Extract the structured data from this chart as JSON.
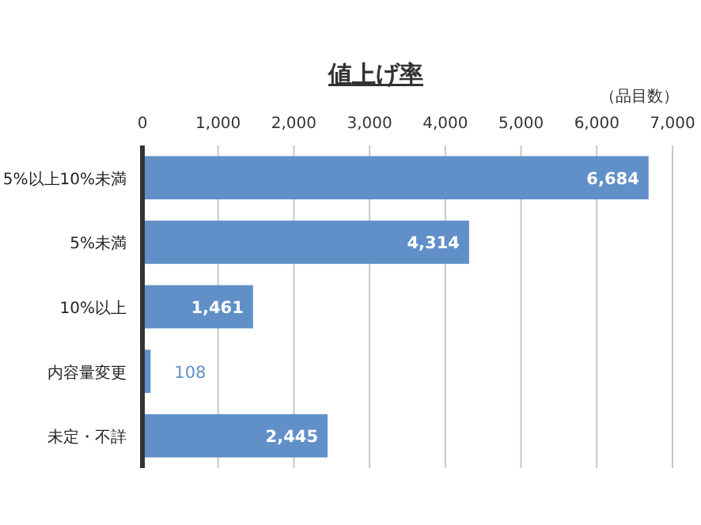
{
  "chart_data": {
    "type": "bar",
    "orientation": "horizontal",
    "title": "値上げ率",
    "xlabel": "（品目数）",
    "categories": [
      "5%以上10%未満",
      "5%未満",
      "10%以上",
      "内容量変更",
      "未定・不詳"
    ],
    "values": [
      6684,
      4314,
      1461,
      108,
      2445
    ],
    "value_labels": [
      "6,684",
      "4,314",
      "1,461",
      "108",
      "2,445"
    ],
    "color": "#6190c8",
    "xlim": [
      0,
      7000
    ],
    "xticks": [
      0,
      {
        "value": 1000,
        "label": "1,000"
      },
      {
        "value": 2000,
        "label": "2,000"
      },
      {
        "value": 3000,
        "label": "3,000"
      },
      {
        "value": 4000,
        "label": "4,000"
      },
      {
        "value": 5000,
        "label": "5,000"
      },
      {
        "value": 6000,
        "label": "6,000"
      },
      {
        "value": 7000,
        "label": "7,000"
      }
    ],
    "grid": "x"
  }
}
